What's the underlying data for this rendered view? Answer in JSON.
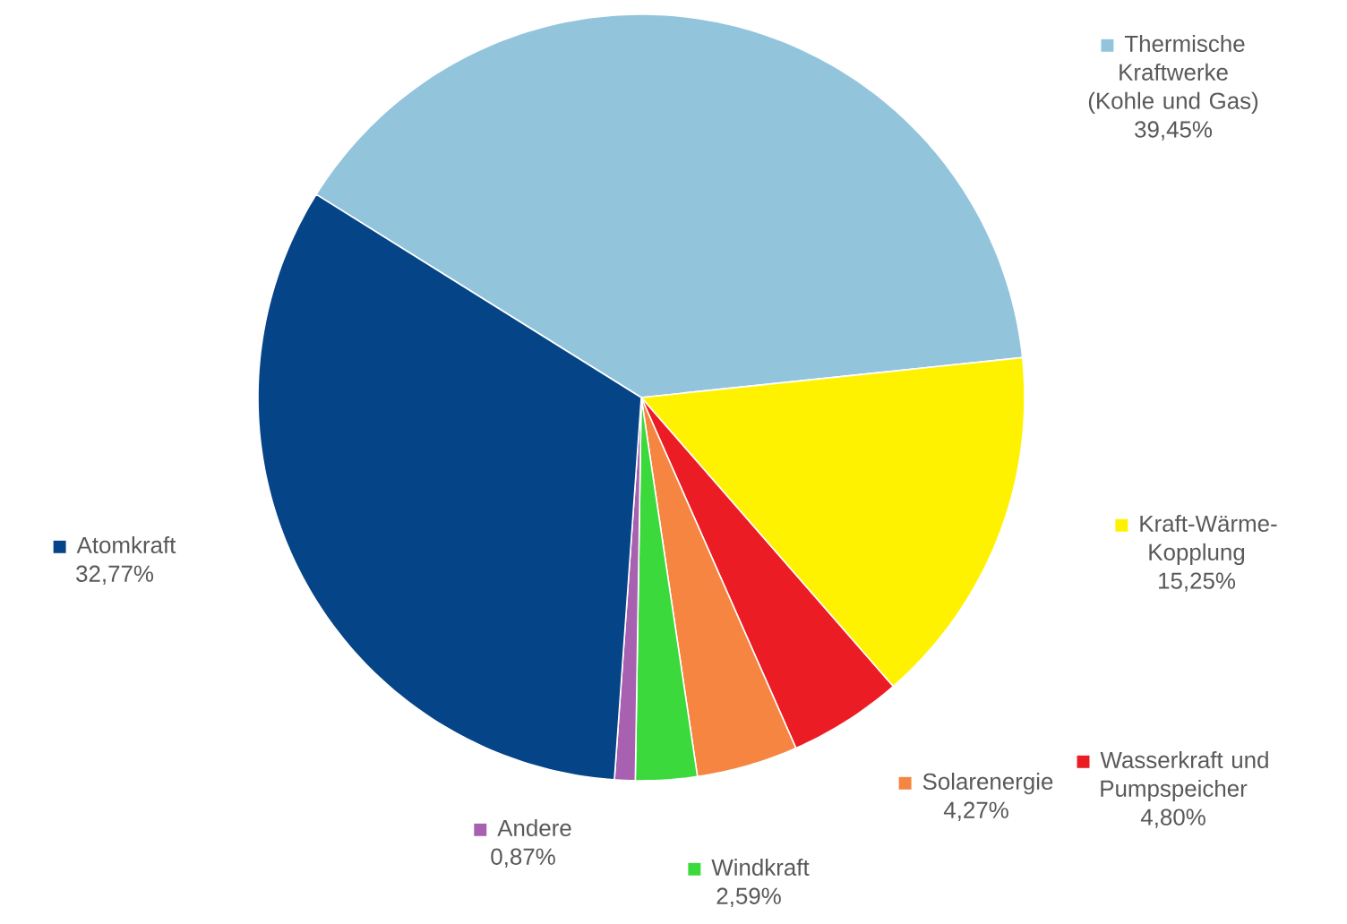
{
  "chart_data": {
    "type": "pie",
    "categories": [
      "Thermische Kraftwerke (Kohle und Gas)",
      "Kraft-Wärme-Kopplung",
      "Wasserkraft und Pumpspeicher",
      "Solarenergie",
      "Windkraft",
      "Andere",
      "Atomkraft"
    ],
    "values": [
      39.45,
      15.25,
      4.8,
      4.27,
      2.59,
      0.87,
      32.77
    ],
    "value_labels": [
      "39,45%",
      "15,25%",
      "4,80%",
      "4,27%",
      "2,59%",
      "0,87%",
      "32,77%"
    ],
    "legend": "right",
    "colors": [
      "#92c5dc",
      "#fff200",
      "#ec1c24",
      "#f58540",
      "#3cd93c",
      "#a860b0",
      "#064488"
    ]
  }
}
